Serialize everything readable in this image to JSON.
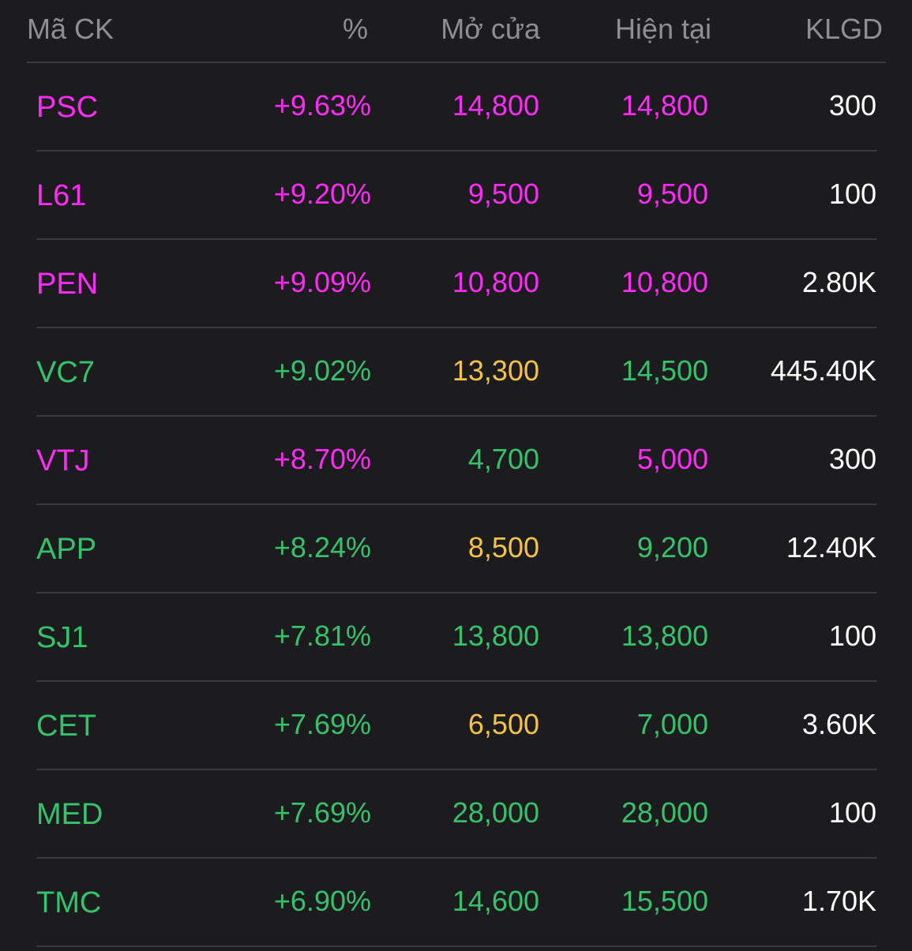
{
  "colors": {
    "ceiling": "#ff2af8",
    "up": "#33c46a",
    "reference": "#f6c243",
    "volume": "#ffffff",
    "header": "#8e8e93",
    "divider": "#3a3a3c",
    "background": "#1c1c1e"
  },
  "header": {
    "symbol": "Mã CK",
    "percent": "%",
    "open": "Mở cửa",
    "current": "Hiện tại",
    "volume": "KLGD"
  },
  "rows": [
    {
      "symbol": "PSC",
      "percent": "+9.63%",
      "open": "14,800",
      "current": "14,800",
      "volume": "300",
      "symbol_status": "ceiling",
      "percent_status": "ceiling",
      "open_status": "ceiling",
      "current_status": "ceiling"
    },
    {
      "symbol": "L61",
      "percent": "+9.20%",
      "open": "9,500",
      "current": "9,500",
      "volume": "100",
      "symbol_status": "ceiling",
      "percent_status": "ceiling",
      "open_status": "ceiling",
      "current_status": "ceiling"
    },
    {
      "symbol": "PEN",
      "percent": "+9.09%",
      "open": "10,800",
      "current": "10,800",
      "volume": "2.80K",
      "symbol_status": "ceiling",
      "percent_status": "ceiling",
      "open_status": "ceiling",
      "current_status": "ceiling"
    },
    {
      "symbol": "VC7",
      "percent": "+9.02%",
      "open": "13,300",
      "current": "14,500",
      "volume": "445.40K",
      "symbol_status": "up",
      "percent_status": "up",
      "open_status": "reference",
      "current_status": "up"
    },
    {
      "symbol": "VTJ",
      "percent": "+8.70%",
      "open": "4,700",
      "current": "5,000",
      "volume": "300",
      "symbol_status": "ceiling",
      "percent_status": "ceiling",
      "open_status": "up",
      "current_status": "ceiling"
    },
    {
      "symbol": "APP",
      "percent": "+8.24%",
      "open": "8,500",
      "current": "9,200",
      "volume": "12.40K",
      "symbol_status": "up",
      "percent_status": "up",
      "open_status": "reference",
      "current_status": "up"
    },
    {
      "symbol": "SJ1",
      "percent": "+7.81%",
      "open": "13,800",
      "current": "13,800",
      "volume": "100",
      "symbol_status": "up",
      "percent_status": "up",
      "open_status": "up",
      "current_status": "up"
    },
    {
      "symbol": "CET",
      "percent": "+7.69%",
      "open": "6,500",
      "current": "7,000",
      "volume": "3.60K",
      "symbol_status": "up",
      "percent_status": "up",
      "open_status": "reference",
      "current_status": "up"
    },
    {
      "symbol": "MED",
      "percent": "+7.69%",
      "open": "28,000",
      "current": "28,000",
      "volume": "100",
      "symbol_status": "up",
      "percent_status": "up",
      "open_status": "up",
      "current_status": "up"
    },
    {
      "symbol": "TMC",
      "percent": "+6.90%",
      "open": "14,600",
      "current": "15,500",
      "volume": "1.70K",
      "symbol_status": "up",
      "percent_status": "up",
      "open_status": "up",
      "current_status": "up"
    }
  ]
}
